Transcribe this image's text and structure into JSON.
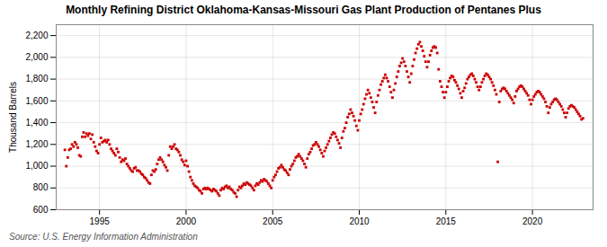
{
  "chart_data": {
    "type": "scatter",
    "title": "Monthly Refining District Oklahoma-Kansas-Missouri Gas Plant Production of Pentanes Plus",
    "ylabel": "Thousand Barrels",
    "source": "Source: U.S. Energy Information Administration",
    "color": "#cc0000",
    "marker": "square",
    "grid": true,
    "xlim": [
      1992.5,
      2023.5
    ],
    "xticks": [
      1995,
      2000,
      2005,
      2010,
      2015,
      2020
    ],
    "ylim": [
      600,
      2300
    ],
    "yticks": [
      600,
      800,
      {
        "value": 1000,
        "label": "1,000"
      },
      {
        "value": 1200,
        "label": "1,200"
      },
      {
        "value": 1400,
        "label": "1,400"
      },
      {
        "value": 1600,
        "label": "1,600"
      },
      {
        "value": 1800,
        "label": "1,800"
      },
      {
        "value": 2000,
        "label": "2,000"
      },
      {
        "value": 2200,
        "label": "2,200"
      }
    ],
    "x": [
      1993,
      1993.0833333333333,
      1993.1666666666667,
      1993.25,
      1993.3333333333333,
      1993.4166666666667,
      1993.5,
      1993.5833333333333,
      1993.6666666666667,
      1993.75,
      1993.8333333333333,
      1993.9166666666667,
      1994,
      1994.0833333333333,
      1994.1666666666667,
      1994.25,
      1994.3333333333333,
      1994.4166666666667,
      1994.5,
      1994.5833333333333,
      1994.6666666666667,
      1994.75,
      1994.8333333333333,
      1994.9166666666667,
      1995,
      1995.0833333333333,
      1995.1666666666667,
      1995.25,
      1995.3333333333333,
      1995.4166666666667,
      1995.5,
      1995.5833333333333,
      1995.6666666666667,
      1995.75,
      1995.8333333333333,
      1995.9166666666667,
      1996,
      1996.0833333333333,
      1996.1666666666667,
      1996.25,
      1996.3333333333333,
      1996.4166666666667,
      1996.5,
      1996.5833333333333,
      1996.6666666666667,
      1996.75,
      1996.8333333333333,
      1996.9166666666667,
      1997,
      1997.0833333333333,
      1997.1666666666667,
      1997.25,
      1997.3333333333333,
      1997.4166666666667,
      1997.5,
      1997.5833333333333,
      1997.6666666666667,
      1997.75,
      1997.8333333333333,
      1997.9166666666667,
      1998,
      1998.0833333333333,
      1998.1666666666667,
      1998.25,
      1998.3333333333333,
      1998.4166666666667,
      1998.5,
      1998.5833333333333,
      1998.6666666666667,
      1998.75,
      1998.8333333333333,
      1998.9166666666667,
      1999,
      1999.0833333333333,
      1999.1666666666667,
      1999.25,
      1999.3333333333333,
      1999.4166666666667,
      1999.5,
      1999.5833333333333,
      1999.6666666666667,
      1999.75,
      1999.8333333333333,
      1999.9166666666667,
      2000,
      2000.0833333333333,
      2000.1666666666667,
      2000.25,
      2000.3333333333333,
      2000.4166666666667,
      2000.5,
      2000.5833333333333,
      2000.6666666666667,
      2000.75,
      2000.8333333333333,
      2000.9166666666667,
      2001,
      2001.0833333333333,
      2001.1666666666667,
      2001.25,
      2001.3333333333333,
      2001.4166666666667,
      2001.5,
      2001.5833333333333,
      2001.6666666666667,
      2001.75,
      2001.8333333333333,
      2001.9166666666667,
      2002,
      2002.0833333333333,
      2002.1666666666667,
      2002.25,
      2002.3333333333333,
      2002.4166666666667,
      2002.5,
      2002.5833333333333,
      2002.6666666666667,
      2002.75,
      2002.8333333333333,
      2002.9166666666667,
      2003,
      2003.0833333333333,
      2003.1666666666667,
      2003.25,
      2003.3333333333333,
      2003.4166666666667,
      2003.5,
      2003.5833333333333,
      2003.6666666666667,
      2003.75,
      2003.8333333333333,
      2003.9166666666667,
      2004,
      2004.0833333333333,
      2004.1666666666667,
      2004.25,
      2004.3333333333333,
      2004.4166666666667,
      2004.5,
      2004.5833333333333,
      2004.6666666666667,
      2004.75,
      2004.8333333333333,
      2004.9166666666667,
      2005,
      2005.0833333333333,
      2005.1666666666667,
      2005.25,
      2005.3333333333333,
      2005.4166666666667,
      2005.5,
      2005.5833333333333,
      2005.6666666666667,
      2005.75,
      2005.8333333333333,
      2005.9166666666667,
      2006,
      2006.0833333333333,
      2006.1666666666667,
      2006.25,
      2006.3333333333333,
      2006.4166666666667,
      2006.5,
      2006.5833333333333,
      2006.6666666666667,
      2006.75,
      2006.8333333333333,
      2006.9166666666667,
      2007,
      2007.0833333333333,
      2007.1666666666667,
      2007.25,
      2007.3333333333333,
      2007.4166666666667,
      2007.5,
      2007.5833333333333,
      2007.6666666666667,
      2007.75,
      2007.8333333333333,
      2007.9166666666667,
      2008,
      2008.0833333333333,
      2008.1666666666667,
      2008.25,
      2008.3333333333333,
      2008.4166666666667,
      2008.5,
      2008.5833333333333,
      2008.6666666666667,
      2008.75,
      2008.8333333333333,
      2008.9166666666667,
      2009,
      2009.0833333333333,
      2009.1666666666667,
      2009.25,
      2009.3333333333333,
      2009.4166666666667,
      2009.5,
      2009.5833333333333,
      2009.6666666666667,
      2009.75,
      2009.8333333333333,
      2009.9166666666667,
      2010,
      2010.0833333333333,
      2010.1666666666667,
      2010.25,
      2010.3333333333333,
      2010.4166666666667,
      2010.5,
      2010.5833333333333,
      2010.6666666666667,
      2010.75,
      2010.8333333333333,
      2010.9166666666667,
      2011,
      2011.0833333333333,
      2011.1666666666667,
      2011.25,
      2011.3333333333333,
      2011.4166666666667,
      2011.5,
      2011.5833333333333,
      2011.6666666666667,
      2011.75,
      2011.8333333333333,
      2011.9166666666667,
      2012,
      2012.0833333333333,
      2012.1666666666667,
      2012.25,
      2012.3333333333333,
      2012.4166666666667,
      2012.5,
      2012.5833333333333,
      2012.6666666666667,
      2012.75,
      2012.8333333333333,
      2012.9166666666667,
      2013,
      2013.0833333333333,
      2013.1666666666667,
      2013.25,
      2013.3333333333333,
      2013.4166666666667,
      2013.5,
      2013.5833333333333,
      2013.6666666666667,
      2013.75,
      2013.8333333333333,
      2013.9166666666667,
      2014,
      2014.0833333333333,
      2014.1666666666667,
      2014.25,
      2014.3333333333333,
      2014.4166666666667,
      2014.5,
      2014.5833333333333,
      2014.6666666666667,
      2014.75,
      2014.8333333333333,
      2014.9166666666667,
      2015,
      2015.0833333333333,
      2015.1666666666667,
      2015.25,
      2015.3333333333333,
      2015.4166666666667,
      2015.5,
      2015.5833333333333,
      2015.6666666666667,
      2015.75,
      2015.8333333333333,
      2015.9166666666667,
      2016,
      2016.0833333333333,
      2016.1666666666667,
      2016.25,
      2016.3333333333333,
      2016.4166666666667,
      2016.5,
      2016.5833333333333,
      2016.6666666666667,
      2016.75,
      2016.8333333333333,
      2016.9166666666667,
      2017,
      2017.0833333333333,
      2017.1666666666667,
      2017.25,
      2017.3333333333333,
      2017.4166666666667,
      2017.5,
      2017.5833333333333,
      2017.6666666666667,
      2017.75,
      2017.8333333333333,
      2017.9166666666667,
      2018,
      2018.0833333333333,
      2018.1666666666667,
      2018.25,
      2018.3333333333333,
      2018.4166666666667,
      2018.5,
      2018.5833333333333,
      2018.6666666666667,
      2018.75,
      2018.8333333333333,
      2018.9166666666667,
      2019,
      2019.0833333333333,
      2019.1666666666667,
      2019.25,
      2019.3333333333333,
      2019.4166666666667,
      2019.5,
      2019.5833333333333,
      2019.6666666666667,
      2019.75,
      2019.8333333333333,
      2019.9166666666667,
      2020,
      2020.0833333333333,
      2020.1666666666667,
      2020.25,
      2020.3333333333333,
      2020.4166666666667,
      2020.5,
      2020.5833333333333,
      2020.6666666666667,
      2020.75,
      2020.8333333333333,
      2020.9166666666667,
      2021,
      2021.0833333333333,
      2021.1666666666667,
      2021.25,
      2021.3333333333333,
      2021.4166666666667,
      2021.5,
      2021.5833333333333,
      2021.6666666666667,
      2021.75,
      2021.8333333333333,
      2021.9166666666667,
      2022,
      2022.0833333333333,
      2022.1666666666667,
      2022.25,
      2022.3333333333333,
      2022.4166666666667,
      2022.5,
      2022.5833333333333,
      2022.6666666666667,
      2022.75,
      2022.8333333333333,
      2022.9166666666667
    ],
    "values": [
      1150,
      1000,
      1080,
      1150,
      1160,
      1200,
      1180,
      1220,
      1200,
      1170,
      1100,
      1090,
      1270,
      1310,
      1270,
      1300,
      1280,
      1300,
      1250,
      1290,
      1220,
      1180,
      1140,
      1120,
      1200,
      1260,
      1220,
      1230,
      1240,
      1220,
      1240,
      1200,
      1160,
      1140,
      1120,
      1100,
      1160,
      1130,
      1080,
      1040,
      1060,
      1050,
      1070,
      1020,
      1000,
      980,
      960,
      950,
      980,
      990,
      960,
      960,
      950,
      930,
      920,
      900,
      890,
      870,
      850,
      840,
      920,
      960,
      950,
      970,
      1020,
      1060,
      1080,
      1060,
      1040,
      1010,
      990,
      960,
      1100,
      1180,
      1160,
      1180,
      1200,
      1160,
      1150,
      1130,
      1100,
      1060,
      1040,
      1010,
      1050,
      1000,
      950,
      900,
      870,
      840,
      820,
      810,
      800,
      780,
      770,
      750,
      790,
      800,
      790,
      800,
      790,
      780,
      770,
      790,
      780,
      770,
      750,
      730,
      780,
      800,
      790,
      810,
      820,
      800,
      810,
      790,
      780,
      760,
      750,
      720,
      780,
      810,
      800,
      820,
      840,
      830,
      850,
      840,
      830,
      820,
      800,
      780,
      820,
      840,
      830,
      850,
      870,
      860,
      880,
      870,
      860,
      840,
      820,
      800,
      870,
      900,
      920,
      950,
      980,
      990,
      1010,
      990,
      970,
      960,
      940,
      920,
      970,
      1000,
      1020,
      1050,
      1080,
      1090,
      1110,
      1090,
      1070,
      1050,
      1020,
      990,
      1070,
      1110,
      1130,
      1160,
      1190,
      1200,
      1220,
      1200,
      1180,
      1150,
      1120,
      1090,
      1140,
      1170,
      1200,
      1230,
      1260,
      1290,
      1310,
      1300,
      1270,
      1240,
      1210,
      1170,
      1260,
      1320,
      1350,
      1400,
      1450,
      1480,
      1520,
      1490,
      1460,
      1420,
      1370,
      1330,
      1420,
      1480,
      1520,
      1570,
      1620,
      1660,
      1700,
      1670,
      1630,
      1590,
      1540,
      1490,
      1590,
      1650,
      1700,
      1750,
      1780,
      1810,
      1840,
      1810,
      1780,
      1730,
      1680,
      1630,
      1700,
      1760,
      1820,
      1870,
      1920,
      1950,
      1990,
      1960,
      1920,
      1870,
      1820,
      1770,
      1850,
      1920,
      1980,
      2040,
      2080,
      2120,
      2140,
      2100,
      2060,
      2010,
      1960,
      1910,
      1960,
      2020,
      2060,
      2090,
      2100,
      2090,
      2040,
      1890,
      1780,
      1730,
      1680,
      1630,
      1680,
      1730,
      1780,
      1810,
      1830,
      1820,
      1790,
      1770,
      1740,
      1710,
      1670,
      1630,
      1690,
      1720,
      1760,
      1800,
      1820,
      1840,
      1850,
      1830,
      1800,
      1770,
      1730,
      1700,
      1730,
      1770,
      1800,
      1830,
      1850,
      1840,
      1820,
      1800,
      1770,
      1740,
      1700,
      1660,
      1040,
      1590,
      1690,
      1710,
      1720,
      1710,
      1690,
      1670,
      1650,
      1630,
      1610,
      1580,
      1640,
      1690,
      1710,
      1730,
      1740,
      1730,
      1710,
      1690,
      1670,
      1650,
      1610,
      1570,
      1610,
      1640,
      1660,
      1680,
      1690,
      1680,
      1660,
      1640,
      1620,
      1590,
      1550,
      1490,
      1540,
      1570,
      1590,
      1610,
      1620,
      1610,
      1590,
      1570,
      1550,
      1520,
      1490,
      1450,
      1490,
      1530,
      1550,
      1560,
      1550,
      1540,
      1520,
      1500,
      1480,
      1460,
      1430,
      1440
    ]
  }
}
